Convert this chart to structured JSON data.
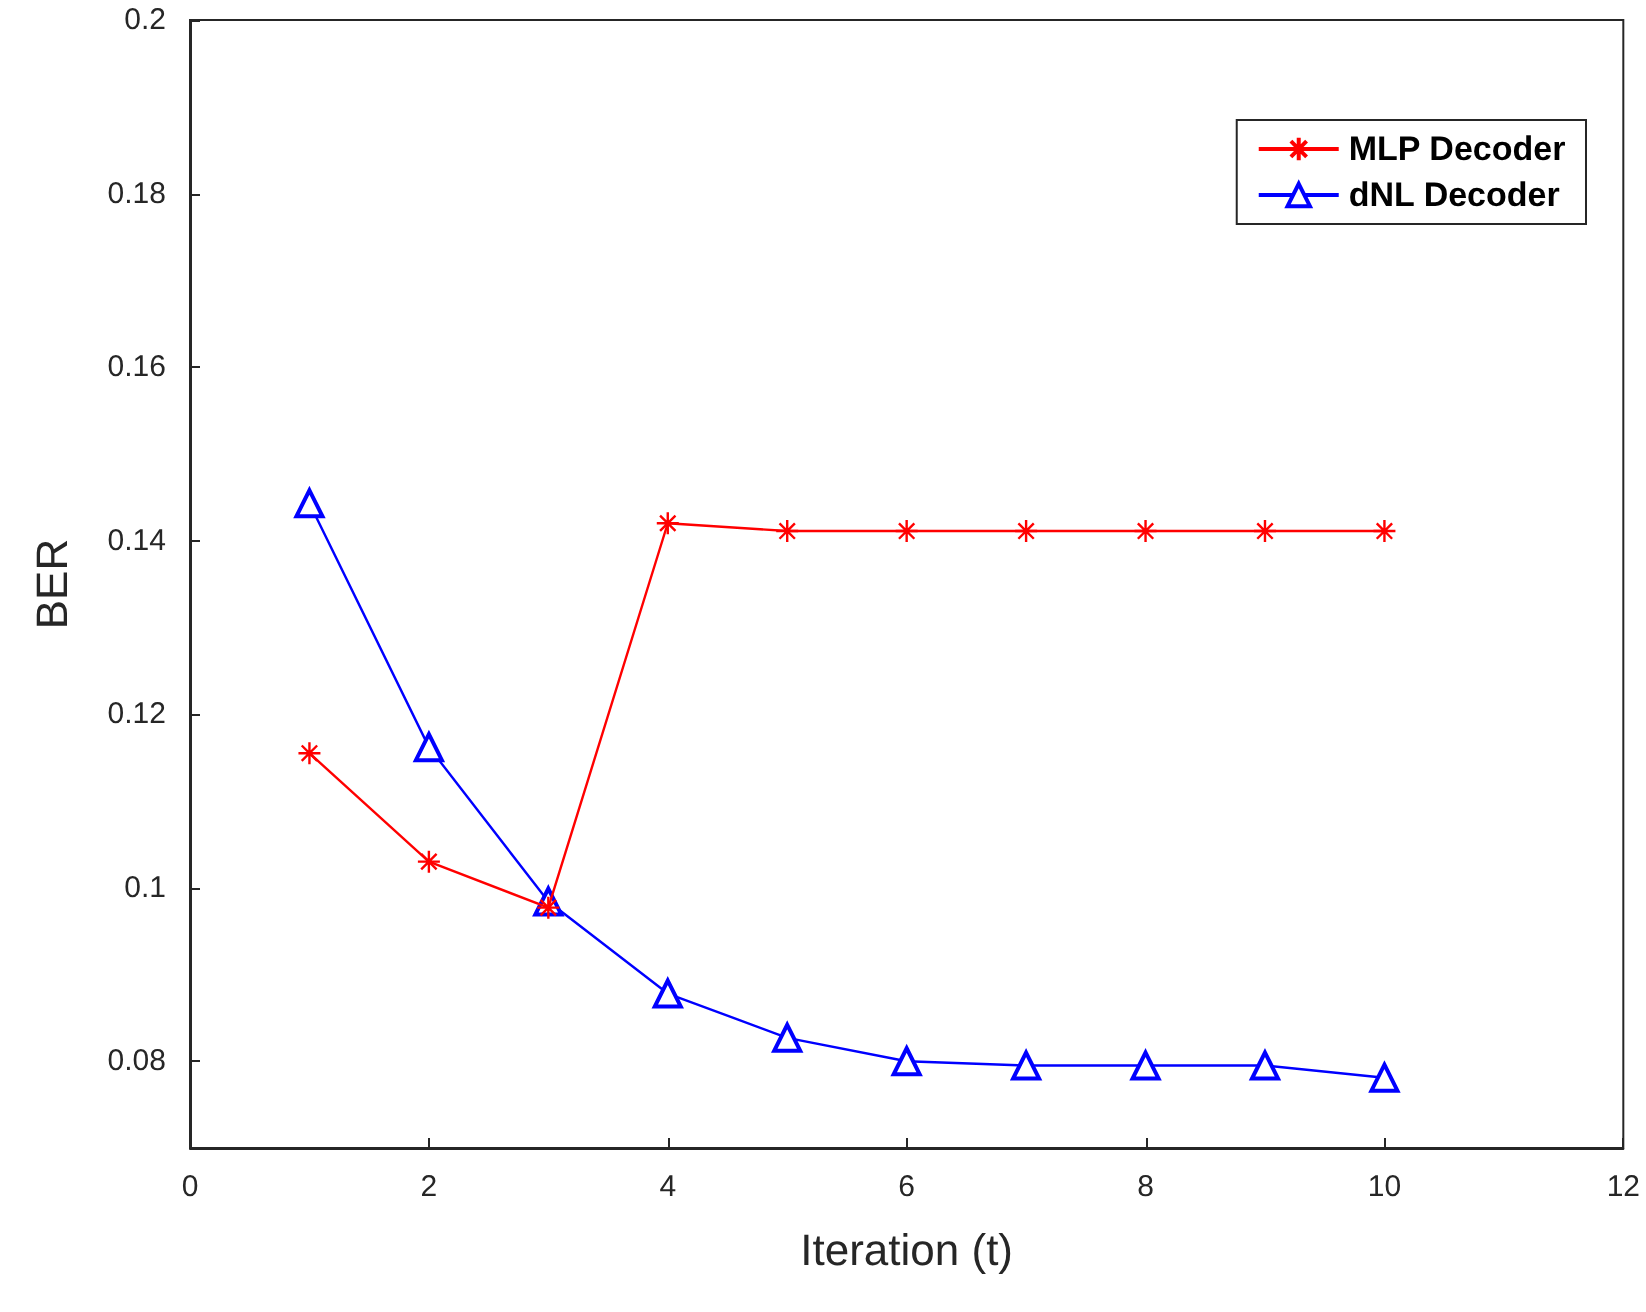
{
  "chart_data": {
    "type": "line",
    "xlabel": "Iteration (t)",
    "ylabel": "BER",
    "x": [
      1,
      2,
      3,
      4,
      5,
      6,
      7,
      8,
      9,
      10
    ],
    "series": [
      {
        "name": "MLP Decoder",
        "color": "#ff0000",
        "marker": "cross",
        "values": [
          0.1155,
          0.103,
          0.0977,
          0.142,
          0.1411,
          0.1411,
          0.1411,
          0.1411,
          0.1411,
          0.1411
        ]
      },
      {
        "name": "dNL Decoder",
        "color": "#0000ff",
        "marker": "triangle",
        "values": [
          0.1443,
          0.1162,
          0.0984,
          0.0878,
          0.0827,
          0.08,
          0.0795,
          0.0795,
          0.0795,
          0.0781
        ]
      }
    ],
    "xlim": [
      0,
      12
    ],
    "xticks": [
      0,
      2,
      4,
      6,
      8,
      10,
      12
    ],
    "ylim": [
      0.07,
      0.2
    ],
    "yticks": [
      0.08,
      0.1,
      0.12,
      0.14,
      0.16,
      0.18,
      0.2
    ],
    "grid": false,
    "legend": "top right",
    "line_style": "solid"
  }
}
